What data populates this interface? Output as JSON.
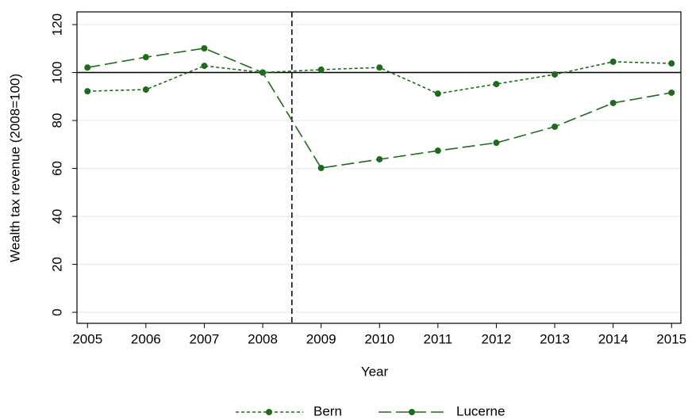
{
  "chart_data": {
    "type": "line",
    "x_label": "Year",
    "y_label": "Wealth tax revenue (2008=100)",
    "x": [
      2005,
      2006,
      2007,
      2008,
      2009,
      2010,
      2011,
      2012,
      2013,
      2014,
      2015
    ],
    "series": [
      {
        "name": "Bern",
        "color": "#1e6b1e",
        "dash": "short",
        "values": [
          92.2,
          92.9,
          102.8,
          100,
          101.2,
          102.1,
          91.2,
          95.2,
          99.2,
          104.5,
          103.8
        ]
      },
      {
        "name": "Lucerne",
        "color": "#1e6b1e",
        "dash": "long",
        "values": [
          102.1,
          106.4,
          110.1,
          100,
          60.2,
          63.8,
          67.4,
          70.7,
          77.4,
          87.3,
          91.6
        ]
      }
    ],
    "xlim": [
      2004.82,
      2015.16
    ],
    "ylim": [
      -4.6,
      125.3
    ],
    "xticks": [
      2005,
      2006,
      2007,
      2008,
      2009,
      2010,
      2011,
      2012,
      2013,
      2014,
      2015
    ],
    "yticks": [
      0,
      20,
      40,
      60,
      80,
      100,
      120
    ],
    "hline": 100,
    "vline": 2008.5,
    "grid": true,
    "legend": "bottom"
  }
}
